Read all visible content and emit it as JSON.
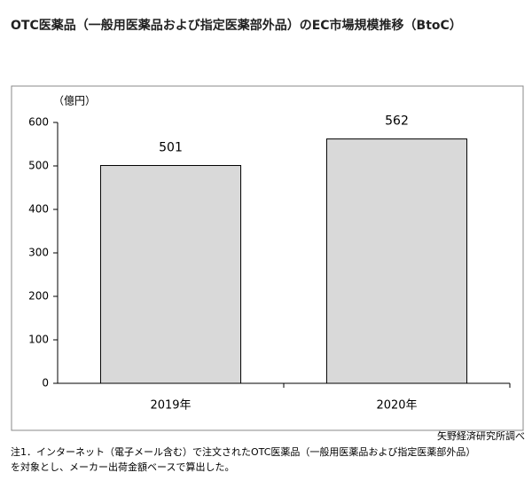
{
  "chart_data": {
    "type": "bar",
    "title": "OTC医薬品（一般用医薬品および指定医薬部外品）のEC市場規模推移（BtoC）",
    "unit_label": "（億円）",
    "categories": [
      "2019年",
      "2020年"
    ],
    "values": [
      501,
      562
    ],
    "color": "#d9d9d9",
    "ylim": [
      0,
      600
    ],
    "yticks": [
      0,
      100,
      200,
      300,
      400,
      500,
      600
    ],
    "grid": false,
    "source": "矢野経済研究所調べ",
    "notes": [
      "注1．インターネット（電子メール含む）で注文されたOTC医薬品（一般用医薬品および指定医薬部外品）",
      "を対象とし、メーカー出荷金額ベースで算出した。"
    ]
  }
}
